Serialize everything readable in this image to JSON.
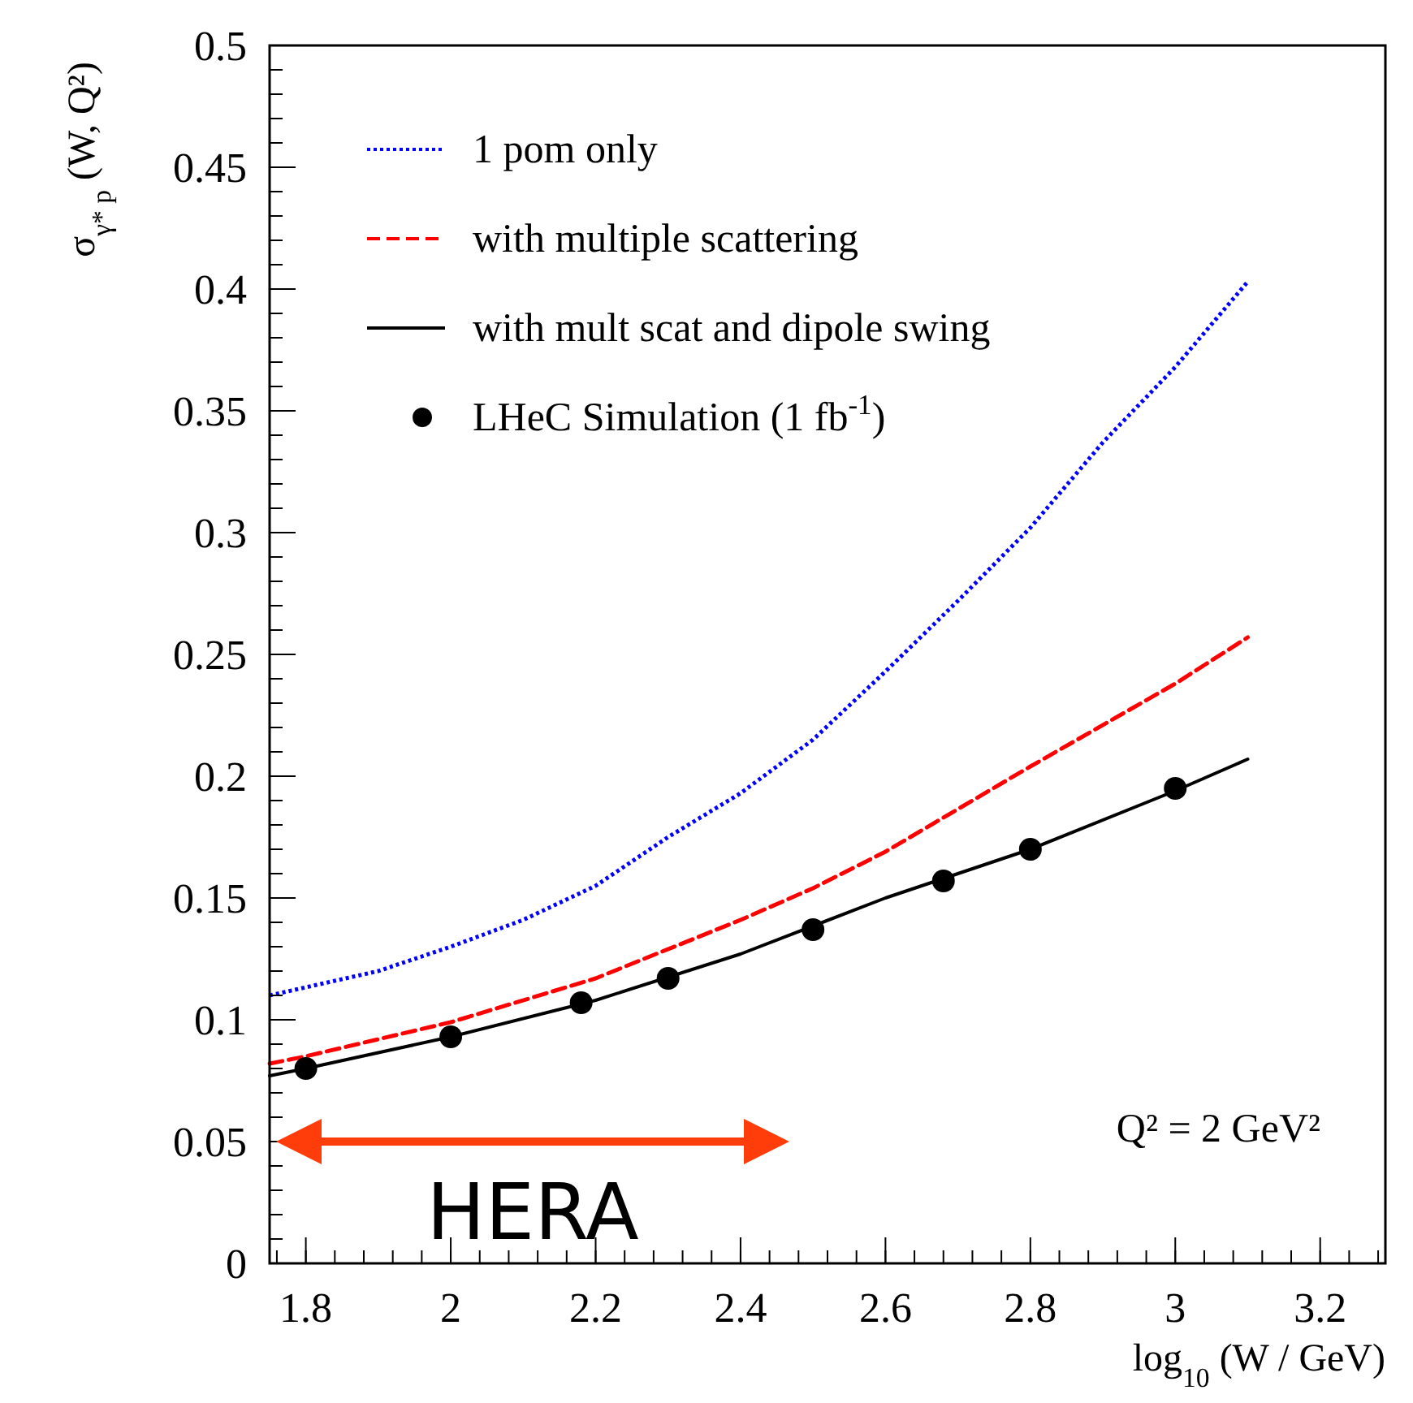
{
  "chart_data": {
    "type": "line",
    "xlabel": "log$_{10}$ (W / GeV)",
    "ylabel": "σ$_{γ* p}$ (W, Q²)",
    "xlim": [
      1.75,
      3.29
    ],
    "xticks": [
      1.8,
      2,
      2.2,
      2.4,
      2.6,
      2.8,
      3,
      3.2
    ],
    "ylim": [
      0,
      0.5
    ],
    "yticks": [
      0,
      0.05,
      0.1,
      0.15,
      0.2,
      0.25,
      0.3,
      0.35,
      0.4,
      0.45,
      0.5
    ],
    "legend": "top left",
    "grid": false,
    "series": [
      {
        "name": "1 pom only",
        "color": "#0000ff",
        "line_style": "dotted",
        "marker": "none",
        "x": [
          1.75,
          1.9,
          2,
          2.1,
          2.2,
          2.3,
          2.4,
          2.5,
          2.6,
          2.7,
          2.8,
          2.9,
          3,
          3.1
        ],
        "values": [
          0.11,
          0.12,
          0.13,
          0.141,
          0.155,
          0.175,
          0.193,
          0.215,
          0.243,
          0.272,
          0.302,
          0.337,
          0.368,
          0.403
        ]
      },
      {
        "name": "with multiple scattering",
        "color": "#ff0000",
        "line_style": "dashed",
        "marker": "none",
        "x": [
          1.75,
          1.8,
          2,
          2.2,
          2.4,
          2.5,
          2.6,
          2.8,
          3,
          3.1
        ],
        "values": [
          0.082,
          0.085,
          0.099,
          0.117,
          0.141,
          0.154,
          0.169,
          0.204,
          0.238,
          0.257
        ]
      },
      {
        "name": "with mult scat and dipole swing",
        "color": "#000000",
        "line_style": "solid",
        "marker": "none",
        "x": [
          1.75,
          1.8,
          2,
          2.2,
          2.4,
          2.6,
          2.8,
          3,
          3.1
        ],
        "values": [
          0.077,
          0.08,
          0.093,
          0.108,
          0.127,
          0.15,
          0.17,
          0.194,
          0.207
        ]
      },
      {
        "name": "LHeC Simulation (1 fb$^{-1}$)",
        "type": "scatter",
        "color": "#000000",
        "marker": "circle",
        "x": [
          1.8,
          2,
          2.18,
          2.3,
          2.5,
          2.68,
          2.8,
          3
        ],
        "values": [
          0.08,
          0.093,
          0.107,
          0.117,
          0.137,
          0.157,
          0.17,
          0.195
        ]
      }
    ],
    "annotations": [
      "Q² = 2 GeV²",
      "HERA"
    ]
  }
}
